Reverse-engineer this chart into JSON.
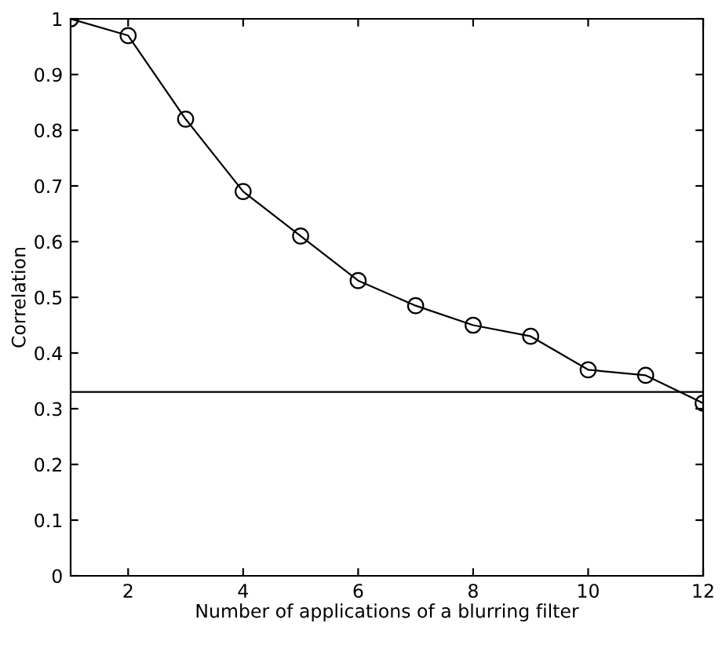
{
  "chart_data": {
    "type": "line",
    "xlabel": "Number of applications of a blurring filter",
    "ylabel": "Correlation",
    "x": [
      1,
      2,
      3,
      4,
      5,
      6,
      7,
      8,
      9,
      10,
      11,
      12
    ],
    "series": [
      {
        "color": "#000000",
        "values": [
          1.0,
          0.97,
          0.82,
          0.69,
          0.61,
          0.53,
          0.485,
          0.45,
          0.43,
          0.37,
          0.36,
          0.31
        ]
      }
    ],
    "marker": "circle",
    "line_style": "solid",
    "grid": false,
    "legend": false,
    "xlim": [
      1,
      12
    ],
    "ylim": [
      0,
      1
    ],
    "xticks": [
      2,
      4,
      6,
      8,
      10,
      12
    ],
    "yticks": [
      0,
      0.1,
      0.2,
      0.3,
      0.4,
      0.5,
      0.6,
      0.7,
      0.8,
      0.9,
      1
    ],
    "ref_lines": [
      {
        "axis": "y",
        "value": 0.33,
        "color": "#000000"
      }
    ]
  }
}
